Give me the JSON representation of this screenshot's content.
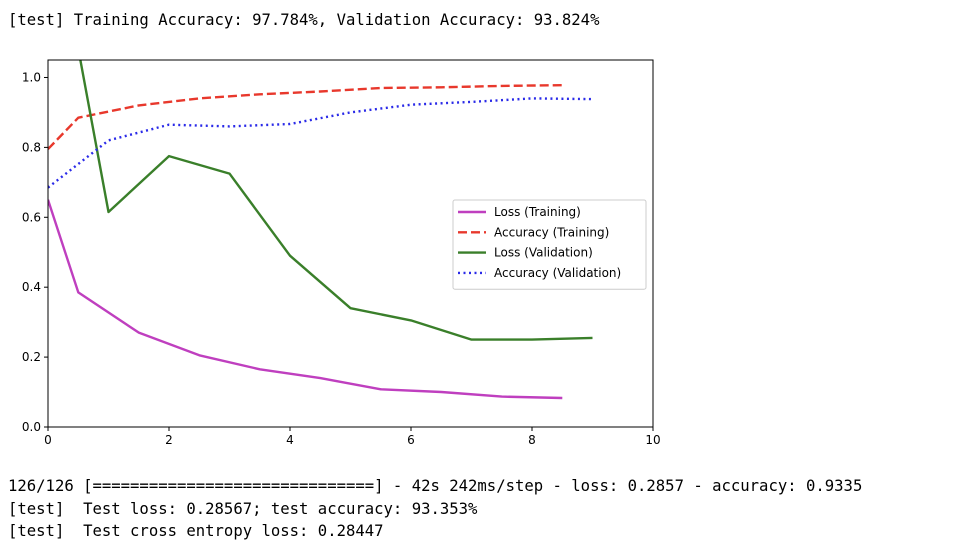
{
  "output": {
    "summary_line": "[test] Training Accuracy: 97.784%, Validation Accuracy: 93.824%",
    "progress_line": "126/126 [==============================] - 42s 242ms/step - loss: 0.2857 - accuracy: 0.9335",
    "test_loss_line": "[test]  Test loss: 0.28567; test accuracy: 93.353%",
    "cross_entropy_line": "[test]  Test cross entropy loss: 0.28447"
  },
  "chart_data": {
    "type": "line",
    "xlim": [
      0,
      10
    ],
    "ylim": [
      0,
      1.05
    ],
    "xticks": [
      0,
      2,
      4,
      6,
      8,
      10
    ],
    "yticks": [
      0.0,
      0.2,
      0.4,
      0.6,
      0.8,
      1.0
    ],
    "xtick_labels": [
      "0",
      "2",
      "4",
      "6",
      "8",
      "10"
    ],
    "ytick_labels": [
      "0.0",
      "0.2",
      "0.4",
      "0.6",
      "0.8",
      "1.0"
    ],
    "grid": false,
    "legend_position": "center-right",
    "series": [
      {
        "name": "Loss (Training)",
        "color": "#bf3fbf",
        "style": "solid",
        "x": [
          0,
          0.5,
          1.5,
          2.5,
          3.5,
          4.5,
          5.5,
          6.5,
          7.5,
          8.5
        ],
        "y": [
          0.65,
          0.385,
          0.27,
          0.205,
          0.165,
          0.14,
          0.108,
          0.1,
          0.087,
          0.083
        ]
      },
      {
        "name": "Accuracy (Training)",
        "color": "#e8382c",
        "style": "dashed",
        "x": [
          0,
          0.5,
          1.5,
          2.5,
          3.5,
          4.5,
          5.5,
          6.5,
          7.5,
          8.5
        ],
        "y": [
          0.795,
          0.885,
          0.92,
          0.94,
          0.952,
          0.96,
          0.97,
          0.972,
          0.976,
          0.978
        ]
      },
      {
        "name": "Loss (Validation)",
        "color": "#3a7f2a",
        "style": "solid",
        "x": [
          0,
          1,
          2,
          3,
          4,
          5,
          6,
          7,
          8,
          9
        ],
        "y": [
          1.55,
          0.615,
          0.775,
          0.725,
          0.49,
          0.34,
          0.305,
          0.25,
          0.25,
          0.255
        ]
      },
      {
        "name": "Accuracy (Validation)",
        "color": "#2a2ae8",
        "style": "dotted",
        "x": [
          0,
          1,
          2,
          3,
          4,
          5,
          6,
          7,
          8,
          9
        ],
        "y": [
          0.685,
          0.82,
          0.865,
          0.86,
          0.867,
          0.9,
          0.922,
          0.93,
          0.94,
          0.938
        ]
      }
    ]
  }
}
